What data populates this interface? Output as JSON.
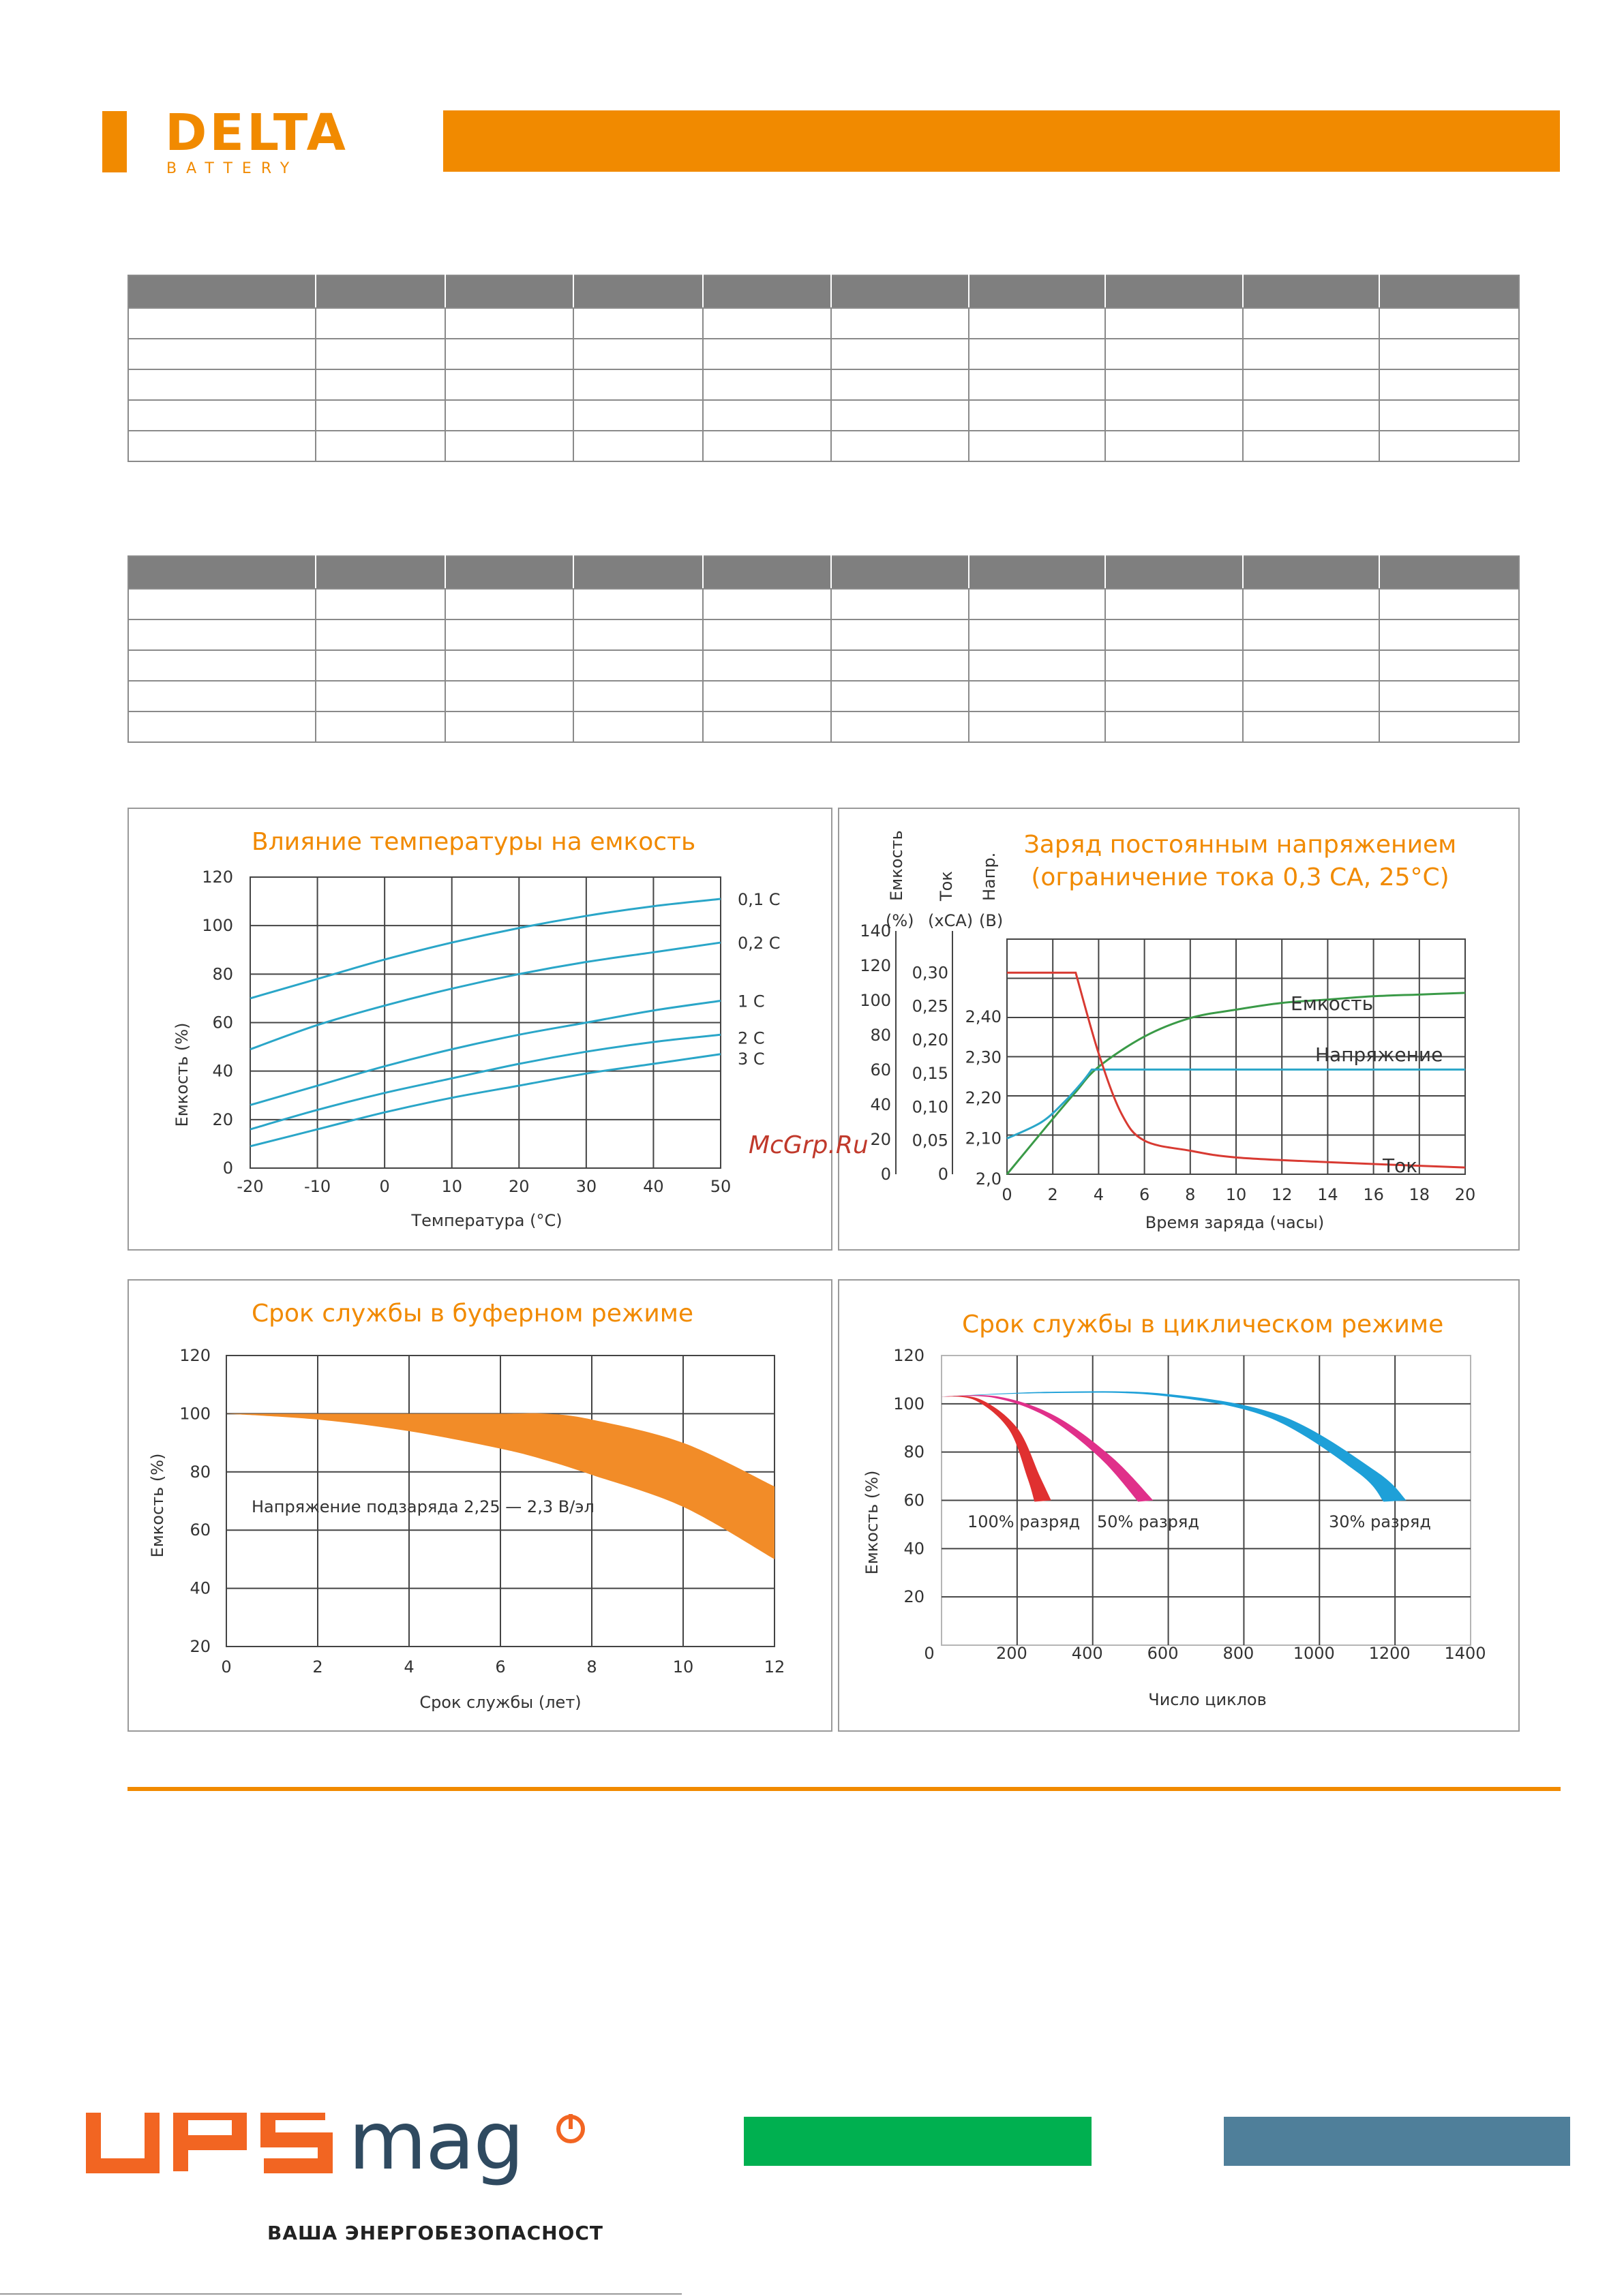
{
  "brand": {
    "name": "DELTA",
    "sub": "BATTERY",
    "accent": "#f18a00"
  },
  "tables": {
    "rows": 5,
    "cols": 10
  },
  "watermark": "McGrp.Ru",
  "charts": {
    "temp": {
      "title": "Влияние температуры на емкость",
      "ylabel": "Емкость (%)",
      "xlabel": "Температура (°C)",
      "xticks": [
        "-20",
        "-10",
        "0",
        "10",
        "20",
        "30",
        "40",
        "50"
      ],
      "yticks": [
        "120",
        "100",
        "80",
        "60",
        "40",
        "20",
        "0"
      ]
    },
    "charge": {
      "title1": "Заряд постоянным напряжением",
      "title2": "(ограничение тока 0,3 СА, 25°С)",
      "h_cap": "Емкость",
      "h_cap_u": "(%)",
      "h_cur": "Ток",
      "h_cur_u": "(хСА)",
      "h_volt": "Напр.",
      "h_volt_u": "(В)",
      "xlabel": "Время заряда (часы)",
      "cap_ticks": [
        "140",
        "120",
        "100",
        "80",
        "60",
        "40",
        "20",
        "0"
      ],
      "cur_ticks": [
        "0,30",
        "0,25",
        "0,20",
        "0,15",
        "0,10",
        "0,05",
        "0"
      ],
      "volt_ticks": [
        "2,40",
        "2,30",
        "2,20",
        "2,10",
        "2,0"
      ],
      "xticks": [
        "0",
        "2",
        "4",
        "6",
        "8",
        "10",
        "12",
        "14",
        "16",
        "18",
        "20"
      ],
      "lbl_cap": "Емкость",
      "lbl_volt": "Напряжение",
      "lbl_cur": "Ток"
    },
    "float": {
      "title": "Срок службы в буферном режиме",
      "ylabel": "Емкость (%)",
      "xlabel": "Срок службы (лет)",
      "note": "Напряжение подзаряда 2,25 — 2,3 В/эл",
      "xticks": [
        "0",
        "2",
        "4",
        "6",
        "8",
        "10",
        "12"
      ],
      "yticks": [
        "120",
        "100",
        "80",
        "60",
        "40",
        "20"
      ]
    },
    "cycle": {
      "title": "Срок службы в циклическом режиме",
      "ylabel": "Емкость (%)",
      "xlabel": "Число циклов",
      "xticks": [
        "200",
        "400",
        "600",
        "800",
        "1000",
        "1200",
        "1400"
      ],
      "x0": "0",
      "yticks": [
        "120",
        "100",
        "80",
        "60",
        "40",
        "20"
      ],
      "lbl100": "100% разряд",
      "lbl50": "50% разряд",
      "lbl30": "30% разряд"
    }
  },
  "chart_data": [
    {
      "type": "line",
      "title": "Влияние температуры на емкость",
      "xlabel": "Температура (°C)",
      "ylabel": "Емкость (%)",
      "xlim": [
        -20,
        50
      ],
      "ylim": [
        0,
        120
      ],
      "x": [
        -20,
        -10,
        0,
        10,
        20,
        30,
        40,
        50
      ],
      "series": [
        {
          "name": "0,1 C",
          "values": [
            70,
            78,
            86,
            93,
            99,
            104,
            108,
            111
          ]
        },
        {
          "name": "0,2 C",
          "values": [
            49,
            59,
            67,
            74,
            80,
            85,
            89,
            93
          ]
        },
        {
          "name": "1 C",
          "values": [
            26,
            34,
            42,
            49,
            55,
            60,
            65,
            69
          ]
        },
        {
          "name": "2 C",
          "values": [
            16,
            24,
            31,
            37,
            43,
            48,
            52,
            55
          ]
        },
        {
          "name": "3 C",
          "values": [
            9,
            16,
            23,
            29,
            34,
            39,
            43,
            47
          ]
        }
      ]
    },
    {
      "type": "line",
      "title": "Заряд постоянным напряжением (ограничение тока 0,3 СА, 25°С)",
      "xlabel": "Время заряда (часы)",
      "xlim": [
        0,
        20
      ],
      "x": [
        0,
        2,
        3,
        4,
        6,
        8,
        10,
        12,
        14,
        16,
        18,
        20
      ],
      "series": [
        {
          "name": "Емкость (%)",
          "values": [
            0,
            33,
            49,
            64,
            82,
            93,
            98,
            102,
            104,
            106,
            107,
            108
          ]
        },
        {
          "name": "Напряжение (В)",
          "values": [
            2.1,
            2.15,
            2.2,
            2.27,
            2.27,
            2.27,
            2.27,
            2.27,
            2.27,
            2.27,
            2.27,
            2.27
          ]
        },
        {
          "name": "Ток (хСА)",
          "values": [
            0.3,
            0.3,
            0.3,
            0.18,
            0.05,
            0.035,
            0.025,
            0.02,
            0.017,
            0.015,
            0.012,
            0.01
          ]
        }
      ]
    },
    {
      "type": "area",
      "title": "Срок службы в буферном режиме",
      "xlabel": "Срок службы (лет)",
      "ylabel": "Емкость (%)",
      "xlim": [
        0,
        12
      ],
      "ylim": [
        20,
        120
      ],
      "x": [
        0,
        2,
        4,
        6,
        7,
        8,
        10,
        12
      ],
      "series": [
        {
          "name": "upper",
          "values": [
            100,
            100,
            100,
            100,
            100,
            98,
            90,
            75
          ]
        },
        {
          "name": "lower",
          "values": [
            100,
            98,
            94,
            88,
            84,
            79,
            68,
            50
          ]
        }
      ]
    },
    {
      "type": "area",
      "title": "Срок службы в циклическом режиме",
      "xlabel": "Число циклов",
      "ylabel": "Емкость (%)",
      "xlim": [
        0,
        1400
      ],
      "ylim": [
        0,
        120
      ],
      "series": [
        {
          "name": "100% разряд",
          "x": [
            0,
            100,
            200,
            260,
            290
          ],
          "values": [
            103,
            102,
            90,
            70,
            60
          ]
        },
        {
          "name": "50% разряд",
          "x": [
            0,
            150,
            300,
            450,
            560
          ],
          "values": [
            103,
            103,
            95,
            78,
            60
          ]
        },
        {
          "name": "30% разряд",
          "x": [
            0,
            300,
            600,
            900,
            1150,
            1230
          ],
          "values": [
            103,
            105,
            104,
            95,
            72,
            60
          ]
        }
      ]
    }
  ]
}
